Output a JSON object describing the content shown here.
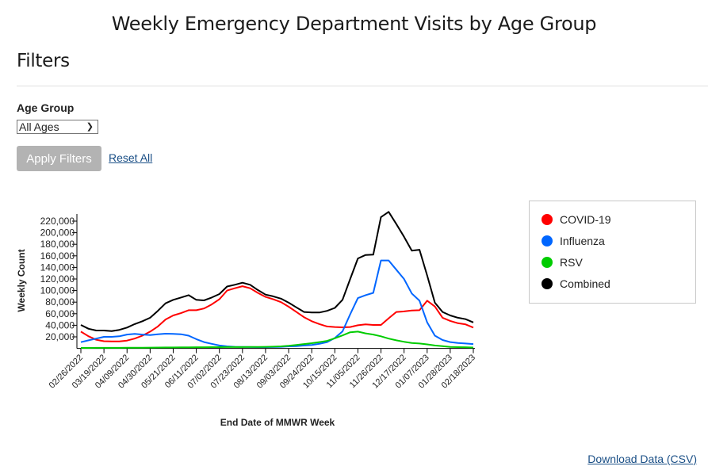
{
  "page": {
    "title": "Weekly Emergency Department Visits by Age Group"
  },
  "filters": {
    "heading": "Filters",
    "age_group_label": "Age Group",
    "age_group_selected": "All Ages",
    "apply_label": "Apply Filters",
    "reset_label": "Reset All"
  },
  "download_label": "Download Data (CSV)",
  "chart_data": {
    "type": "line",
    "title": "",
    "xlabel": "End Date of MMWR Week",
    "ylabel": "Weekly Count",
    "ylim": [
      0,
      230000
    ],
    "yticks": [
      20000,
      40000,
      60000,
      80000,
      100000,
      120000,
      140000,
      160000,
      180000,
      200000,
      220000
    ],
    "ytick_labels": [
      "20,000",
      "40,000",
      "60,000",
      "80,000",
      "100,000",
      "120,000",
      "140,000",
      "160,000",
      "180,000",
      "200,000",
      "220,000"
    ],
    "grid": false,
    "legend_position": "right",
    "x": [
      "02/26/2022",
      "03/05/2022",
      "03/12/2022",
      "03/19/2022",
      "03/26/2022",
      "04/02/2022",
      "04/09/2022",
      "04/16/2022",
      "04/23/2022",
      "04/30/2022",
      "05/07/2022",
      "05/14/2022",
      "05/21/2022",
      "05/28/2022",
      "06/04/2022",
      "06/11/2022",
      "06/18/2022",
      "06/25/2022",
      "07/02/2022",
      "07/09/2022",
      "07/16/2022",
      "07/23/2022",
      "07/30/2022",
      "08/06/2022",
      "08/13/2022",
      "08/20/2022",
      "08/27/2022",
      "09/03/2022",
      "09/10/2022",
      "09/17/2022",
      "09/24/2022",
      "10/01/2022",
      "10/08/2022",
      "10/15/2022",
      "10/22/2022",
      "10/29/2022",
      "11/05/2022",
      "11/12/2022",
      "11/19/2022",
      "11/26/2022",
      "12/03/2022",
      "12/10/2022",
      "12/17/2022",
      "12/24/2022",
      "12/31/2022",
      "01/07/2023",
      "01/14/2023",
      "01/21/2023",
      "01/28/2023",
      "02/04/2023",
      "02/11/2023",
      "02/18/2023"
    ],
    "xtick_labels": [
      "02/26/2022",
      "03/19/2022",
      "04/09/2022",
      "04/30/2022",
      "05/21/2022",
      "06/11/2022",
      "07/02/2022",
      "07/23/2022",
      "08/13/2022",
      "09/03/2022",
      "09/24/2022",
      "10/15/2022",
      "11/05/2022",
      "11/26/2022",
      "12/17/2022",
      "01/07/2023",
      "01/28/2023",
      "02/18/2023"
    ],
    "series": [
      {
        "name": "COVID-19",
        "color": "#ff0000",
        "values": [
          29000,
          21000,
          15000,
          12500,
          12000,
          12000,
          13500,
          17000,
          22000,
          29000,
          38000,
          50000,
          57000,
          61000,
          66000,
          66000,
          69000,
          76000,
          85000,
          100000,
          104000,
          107500,
          104000,
          96000,
          89000,
          85000,
          80000,
          72000,
          63000,
          54000,
          47000,
          42000,
          38000,
          37000,
          36500,
          37000,
          40000,
          41500,
          40500,
          40500,
          52000,
          63000,
          64000,
          65500,
          66000,
          82500,
          72500,
          53000,
          47500,
          43500,
          41500,
          36000
        ]
      },
      {
        "name": "Influenza",
        "color": "#0066ff",
        "values": [
          10800,
          14000,
          17000,
          20000,
          20000,
          21000,
          24000,
          25000,
          24000,
          23000,
          24500,
          25500,
          25000,
          24500,
          22000,
          16000,
          11000,
          8000,
          5000,
          3500,
          2800,
          2500,
          2300,
          2200,
          2200,
          2300,
          2800,
          3500,
          4000,
          5000,
          6000,
          8000,
          11000,
          18000,
          29500,
          59000,
          87000,
          92000,
          96000,
          152000,
          152000,
          136000,
          120000,
          95000,
          82500,
          45000,
          22000,
          14500,
          11000,
          9500,
          8500,
          7500
        ]
      },
      {
        "name": "RSV",
        "color": "#00cc00",
        "values": [
          800,
          800,
          900,
          900,
          1000,
          1000,
          1100,
          1200,
          1300,
          1400,
          1500,
          1600,
          1700,
          1800,
          1900,
          2000,
          2100,
          2200,
          2200,
          2300,
          2300,
          2300,
          2400,
          2500,
          2700,
          3000,
          3500,
          4500,
          6000,
          7500,
          9000,
          11000,
          13000,
          17500,
          22500,
          28000,
          29000,
          26000,
          24000,
          21000,
          17000,
          14000,
          11500,
          9500,
          8500,
          7000,
          5000,
          4000,
          2500,
          2200,
          2000,
          1500
        ]
      },
      {
        "name": "Combined",
        "color": "#000000",
        "values": [
          40500,
          34000,
          31000,
          31000,
          30000,
          32000,
          36000,
          42000,
          47000,
          53000,
          65000,
          78000,
          84000,
          88000,
          92000,
          84000,
          83000,
          88000,
          94000,
          107000,
          110000,
          113500,
          110000,
          101000,
          93000,
          90000,
          86000,
          79000,
          71000,
          63000,
          62000,
          62000,
          65000,
          70000,
          84000,
          120000,
          155500,
          161500,
          162000,
          227000,
          236000,
          215000,
          193000,
          169000,
          170500,
          126000,
          79000,
          63000,
          57000,
          53000,
          50500,
          45000
        ]
      }
    ]
  }
}
